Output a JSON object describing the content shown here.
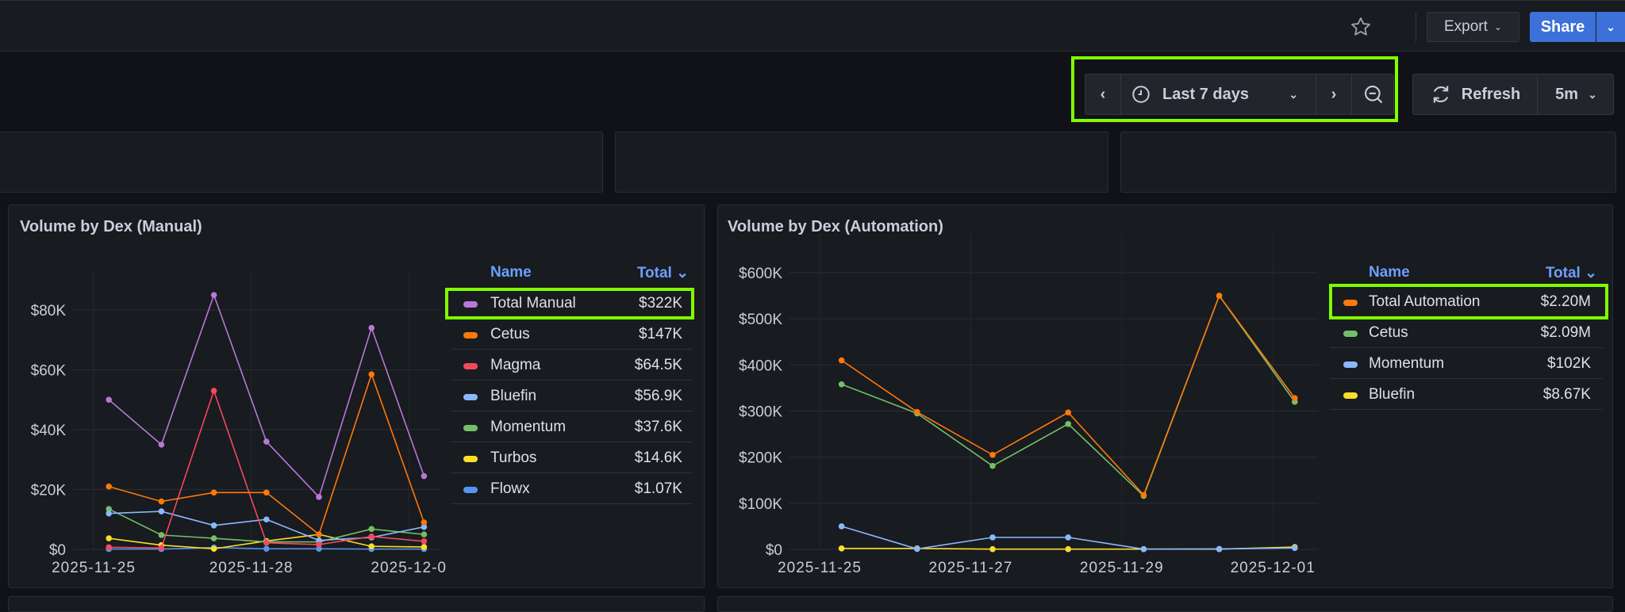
{
  "header": {
    "star_icon": "star-icon",
    "export_label": "Export",
    "share_label": "Share"
  },
  "time_picker": {
    "range_label": "Last 7 days",
    "refresh_label": "Refresh",
    "refresh_interval": "5m"
  },
  "legend_headers": {
    "name": "Name",
    "total": "Total"
  },
  "chart_data": [
    {
      "type": "line",
      "title": "Volume by Dex (Manual)",
      "x": [
        "2025-11-25",
        "2025-11-26",
        "2025-11-27",
        "2025-11-28",
        "2025-11-29",
        "2025-11-30",
        "2025-12-01"
      ],
      "x_tick_labels": [
        "2025-11-25",
        "2025-11-28",
        "2025-12-0"
      ],
      "y_tick_labels": [
        "$0",
        "$20K",
        "$40K",
        "$60K",
        "$80K"
      ],
      "ylim": [
        0,
        93
      ],
      "y_unit": "K USD",
      "grid": true,
      "legend_placement": "right",
      "series": [
        {
          "name": "Total Manual",
          "total": "$322K",
          "color": "#b877d9",
          "values": [
            50,
            35,
            85,
            36,
            17.5,
            74,
            24.5
          ]
        },
        {
          "name": "Cetus",
          "total": "$147K",
          "color": "#ff780a",
          "values": [
            21,
            16,
            19,
            19,
            5,
            58.5,
            9
          ]
        },
        {
          "name": "Magma",
          "total": "$64.5K",
          "color": "#f2495c",
          "values": [
            0.7,
            0.5,
            53,
            2.2,
            1.6,
            4.3,
            2.7
          ]
        },
        {
          "name": "Bluefin",
          "total": "$56.9K",
          "color": "#8ab8ff",
          "values": [
            12,
            12.7,
            8,
            10,
            3,
            4,
            7.5
          ]
        },
        {
          "name": "Momentum",
          "total": "$37.6K",
          "color": "#73bf69",
          "values": [
            13.5,
            4.8,
            3.7,
            2.5,
            2.5,
            6.8,
            5
          ]
        },
        {
          "name": "Turbos",
          "total": "$14.6K",
          "color": "#fade2a",
          "values": [
            3.7,
            1.4,
            0.2,
            2.8,
            5,
            1,
            0.8
          ]
        },
        {
          "name": "Flowx",
          "total": "$1.07K",
          "color": "#5794f2",
          "values": [
            0.1,
            0.1,
            0.6,
            0.2,
            0.2,
            0.1,
            0.1
          ]
        }
      ]
    },
    {
      "type": "line",
      "title": "Volume by Dex (Automation)",
      "x": [
        "2025-11-25",
        "2025-11-26",
        "2025-11-27",
        "2025-11-28",
        "2025-11-29",
        "2025-11-30",
        "2025-12-01"
      ],
      "x_tick_labels": [
        "2025-11-25",
        "2025-11-27",
        "2025-11-29",
        "2025-12-01"
      ],
      "y_tick_labels": [
        "$0",
        "$100K",
        "$200K",
        "$300K",
        "$400K",
        "$500K",
        "$600K"
      ],
      "ylim": [
        0,
        600
      ],
      "y_unit": "K USD",
      "grid": true,
      "legend_placement": "right",
      "series": [
        {
          "name": "Total Automation",
          "total": "$2.20M",
          "color": "#ff780a",
          "values": [
            410,
            298,
            205,
            297,
            118,
            550,
            328
          ]
        },
        {
          "name": "Cetus",
          "total": "$2.09M",
          "color": "#73bf69",
          "values": [
            358,
            295,
            181,
            272,
            116,
            550,
            320
          ]
        },
        {
          "name": "Momentum",
          "total": "$102K",
          "color": "#8ab8ff",
          "values": [
            50,
            1,
            26,
            26,
            0.5,
            1,
            3
          ]
        },
        {
          "name": "Bluefin",
          "total": "$8.67K",
          "color": "#fade2a",
          "values": [
            2,
            2,
            0.5,
            0.5,
            0.5,
            0.5,
            5
          ]
        }
      ]
    }
  ]
}
